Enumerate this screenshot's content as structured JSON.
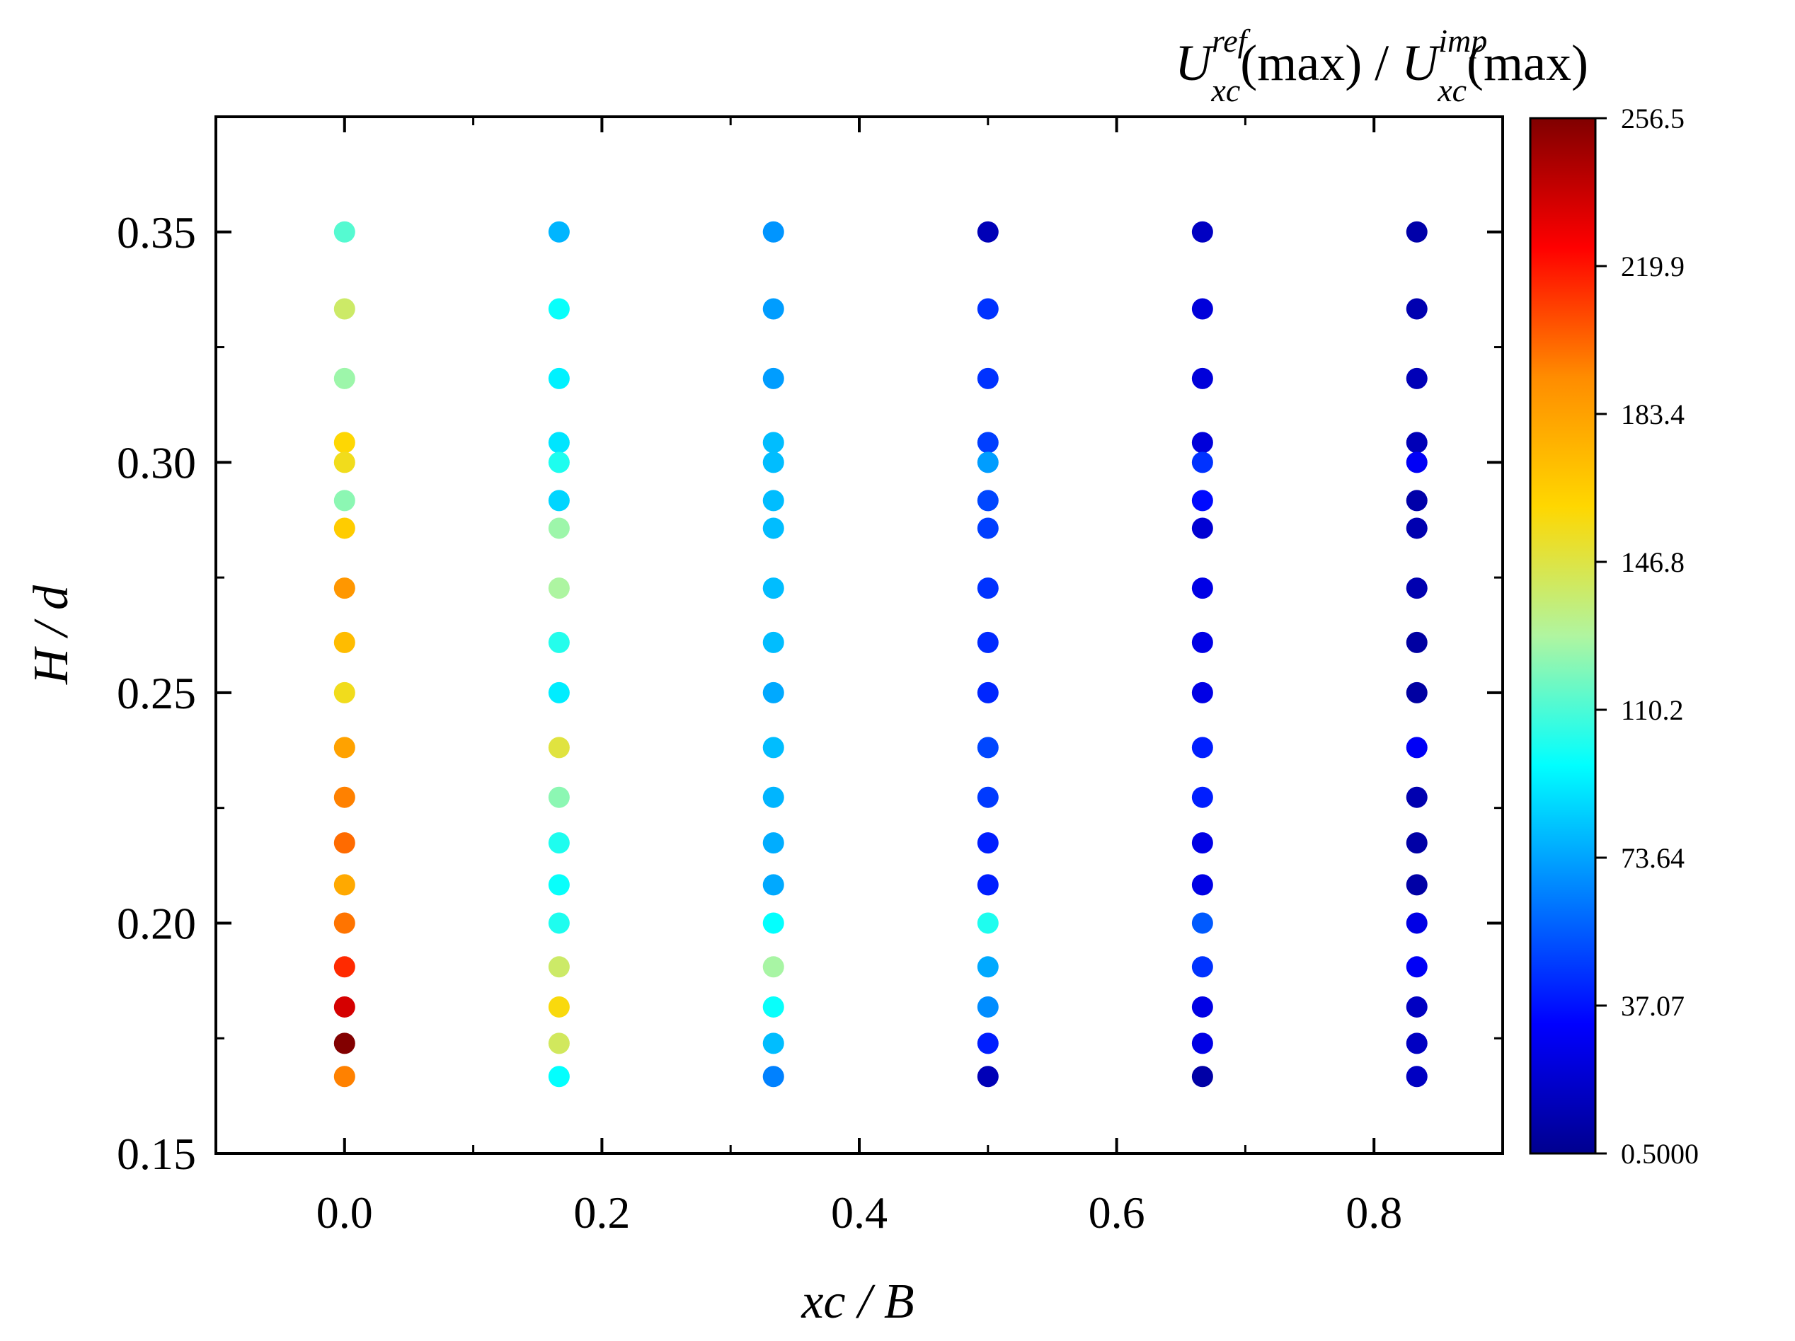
{
  "chart_data": {
    "type": "scatter",
    "xlabel": "xc / B",
    "ylabel": "H / d",
    "xlim": [
      -0.1,
      0.9
    ],
    "ylim": [
      0.15,
      0.375
    ],
    "x_ticks": [
      "0.0",
      "0.2",
      "0.4",
      "0.6",
      "0.8"
    ],
    "y_ticks": [
      "0.15",
      "0.20",
      "0.25",
      "0.30",
      "0.35"
    ],
    "grid": false,
    "colorbar": {
      "title": {
        "base1": "U",
        "sup1": "ref",
        "sub1": "xc",
        "rest1": "(max)",
        "sep": " / ",
        "base2": "U",
        "sup2": "imp",
        "sub2": "xc",
        "rest2": "(max)"
      },
      "min": 0.5,
      "max": 256.5,
      "tick_labels": [
        "256.5",
        "219.9",
        "183.4",
        "146.8",
        "110.2",
        "73.64",
        "37.07",
        "0.5000"
      ],
      "colormap": "jet"
    },
    "y_levels": [
      0.35,
      0.3333,
      0.3182,
      0.3043,
      0.3,
      0.2917,
      0.2857,
      0.2727,
      0.2609,
      0.25,
      0.2381,
      0.2273,
      0.2174,
      0.2083,
      0.2,
      0.1905,
      0.1818,
      0.1739,
      0.1667
    ],
    "series": [
      {
        "x": 0.0,
        "values": [
          112,
          140,
          125,
          160,
          155,
          122,
          165,
          188,
          172,
          155,
          183,
          195,
          200,
          180,
          198,
          215,
          235,
          256,
          195
        ]
      },
      {
        "x": 0.1667,
        "values": [
          78,
          98,
          93,
          90,
          102,
          86,
          125,
          128,
          103,
          92,
          148,
          122,
          102,
          98,
          102,
          140,
          158,
          142,
          97
        ]
      },
      {
        "x": 0.3333,
        "values": [
          70,
          72,
          72,
          80,
          80,
          80,
          80,
          80,
          80,
          75,
          80,
          78,
          76,
          75,
          97,
          127,
          98,
          80,
          65
        ]
      },
      {
        "x": 0.5,
        "values": [
          12,
          45,
          45,
          48,
          72,
          50,
          48,
          45,
          43,
          42,
          50,
          47,
          40,
          40,
          102,
          75,
          68,
          40,
          12
        ]
      },
      {
        "x": 0.6667,
        "values": [
          15,
          22,
          22,
          22,
          45,
          35,
          20,
          25,
          25,
          25,
          40,
          40,
          25,
          25,
          55,
          45,
          25,
          25,
          7
        ]
      },
      {
        "x": 0.8333,
        "values": [
          8,
          10,
          12,
          12,
          30,
          8,
          10,
          10,
          6,
          6,
          30,
          10,
          7,
          7,
          25,
          30,
          15,
          15,
          15
        ]
      }
    ]
  }
}
